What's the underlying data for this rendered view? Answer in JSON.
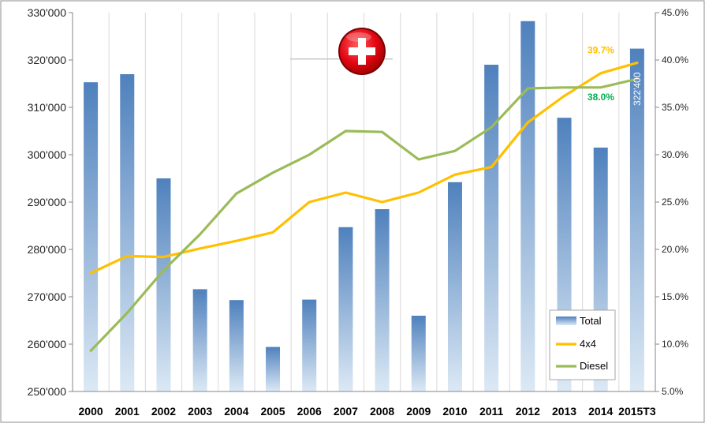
{
  "chart_data": {
    "type": "bar",
    "categories": [
      "2000",
      "2001",
      "2002",
      "2003",
      "2004",
      "2005",
      "2006",
      "2007",
      "2008",
      "2009",
      "2010",
      "2011",
      "2012",
      "2013",
      "2014",
      "2015T3"
    ],
    "y_left": {
      "ylim": [
        250000,
        330000
      ],
      "ticks": [
        250000,
        260000,
        270000,
        280000,
        290000,
        300000,
        310000,
        320000,
        330000
      ],
      "tick_labels": [
        "250'000",
        "260'000",
        "270'000",
        "280'000",
        "290'000",
        "300'000",
        "310'000",
        "320'000",
        "330'000"
      ]
    },
    "y_right": {
      "ylim": [
        5,
        45
      ],
      "ticks": [
        5,
        10,
        15,
        20,
        25,
        30,
        35,
        40,
        45
      ],
      "tick_labels": [
        "5.0%",
        "10.0%",
        "15.0%",
        "20.0%",
        "25.0%",
        "30.0%",
        "35.0%",
        "40.0%",
        "45.0%"
      ]
    },
    "grid": "vertical",
    "legend_position": "bottom-right",
    "series": [
      {
        "name": "Total",
        "kind": "bar",
        "axis": "left",
        "colors": {
          "top": "#4f81bd",
          "bottom": "#dce9f5"
        },
        "values": [
          315300,
          317000,
          295000,
          271600,
          269300,
          259400,
          269400,
          284700,
          288500,
          266000,
          294200,
          319000,
          328200,
          307800,
          301500,
          322400
        ]
      },
      {
        "name": "4x4",
        "kind": "line",
        "axis": "right",
        "color": "#ffc000",
        "values": [
          17.5,
          19.3,
          19.2,
          20.1,
          20.9,
          21.8,
          25.0,
          26.0,
          25.0,
          26.0,
          27.9,
          28.7,
          33.4,
          36.2,
          38.6,
          39.7
        ]
      },
      {
        "name": "Diesel",
        "kind": "line",
        "axis": "right",
        "color": "#9bbb59",
        "values": [
          9.3,
          13.3,
          17.8,
          21.6,
          25.9,
          28.1,
          30.0,
          32.5,
          32.4,
          29.5,
          30.4,
          32.9,
          37.0,
          37.1,
          37.1,
          38.0
        ]
      }
    ],
    "annotations": [
      {
        "text": "39.7%",
        "series": "4x4",
        "category": "2015T3",
        "color": "#ffc000"
      },
      {
        "text": "38.0%",
        "series": "Diesel",
        "category": "2015T3",
        "color": "#00b050"
      },
      {
        "text": "322'400",
        "series": "Total",
        "category": "2015T3",
        "color": "#ffffff"
      }
    ]
  },
  "flag": {
    "icon": "swiss-flag-icon",
    "red": "#e30613",
    "white": "#ffffff"
  }
}
